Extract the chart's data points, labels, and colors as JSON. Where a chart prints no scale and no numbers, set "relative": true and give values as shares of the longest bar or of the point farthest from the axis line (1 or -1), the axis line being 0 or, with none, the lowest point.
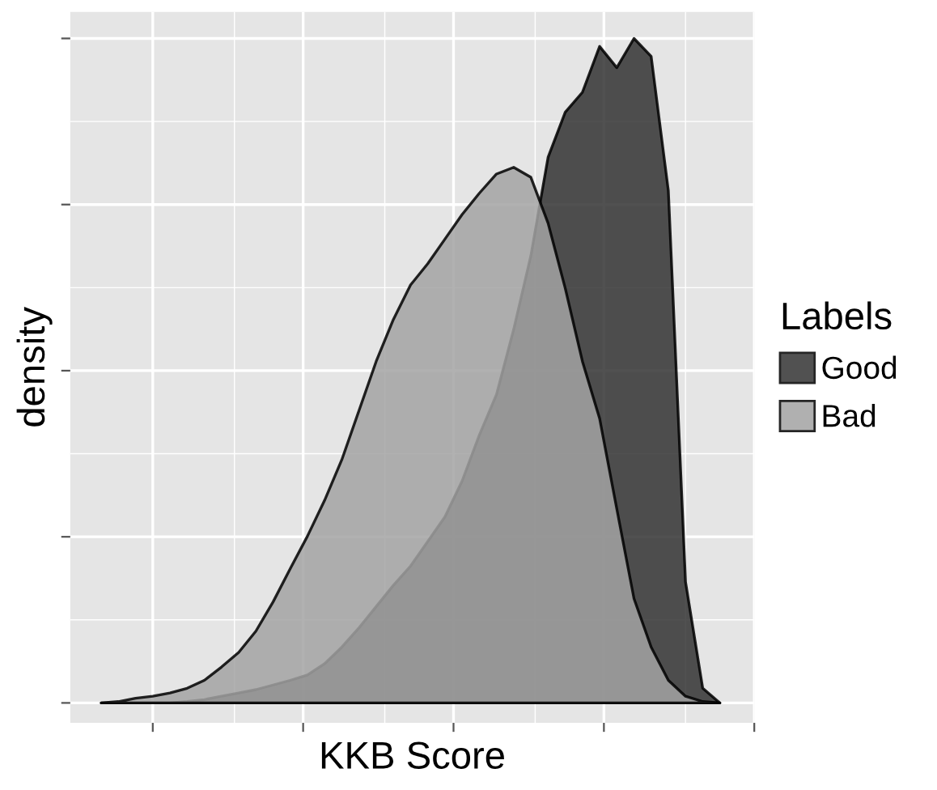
{
  "chart_data": {
    "type": "area",
    "relative": true,
    "xlabel": "KKB Score",
    "ylabel": "density",
    "legend_title": "Labels",
    "legend": "right",
    "grid": true,
    "tick_labels": false,
    "categories": [
      null,
      null,
      null,
      null,
      null,
      null,
      null,
      null,
      null,
      null,
      null,
      null,
      null,
      null,
      null,
      null,
      null,
      null,
      null,
      null,
      null,
      null,
      null,
      null,
      null,
      null,
      null,
      null,
      null,
      null,
      null,
      null,
      null,
      null,
      null,
      null,
      null
    ],
    "series": [
      {
        "name": "Good",
        "color": "#333333",
        "values": [
          0,
          0,
          0,
          0,
          0,
          0.002,
          0.005,
          0.01,
          0.015,
          0.02,
          0.027,
          0.034,
          0.042,
          0.059,
          0.084,
          0.113,
          0.145,
          0.177,
          0.206,
          0.243,
          0.28,
          0.334,
          0.403,
          0.464,
          0.562,
          0.673,
          0.821,
          0.889,
          0.919,
          0.988,
          0.956,
          1,
          0.973,
          0.771,
          0.182,
          0.022,
          0
        ]
      },
      {
        "name": "Bad",
        "color": "#a3a3a3",
        "values": [
          0,
          0.002,
          0.007,
          0.01,
          0.015,
          0.022,
          0.034,
          0.054,
          0.076,
          0.108,
          0.152,
          0.202,
          0.251,
          0.305,
          0.366,
          0.44,
          0.514,
          0.577,
          0.629,
          0.661,
          0.698,
          0.735,
          0.767,
          0.796,
          0.806,
          0.791,
          0.722,
          0.624,
          0.514,
          0.428,
          0.292,
          0.157,
          0.084,
          0.034,
          0.01,
          0.002,
          0
        ]
      }
    ]
  }
}
